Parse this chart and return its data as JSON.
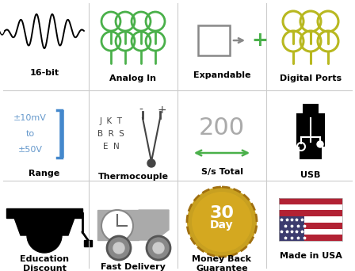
{
  "background_color": "#ffffff",
  "labels": {
    "row0": [
      "16-bit",
      "Analog In",
      "Expandable",
      "Digital Ports"
    ],
    "row1": [
      "Range",
      "Thermocouple",
      "S/s Total",
      "USB"
    ],
    "row2": [
      "Education\nDiscount",
      "Fast Delivery",
      "Money Back\nGuarantee",
      "Made in USA"
    ]
  },
  "analog_in_color": "#4ab04a",
  "digital_ports_color": "#b8b820",
  "expandable_plus_color": "#4ab04a",
  "expandable_arrow_color": "#888888",
  "range_text_color": "#6699cc",
  "range_bar_color": "#4488cc",
  "thermocouple_color": "#444444",
  "ss_total_color": "#4ab04a",
  "money_back_color": "#c8a020",
  "separator_color": "#cccccc",
  "label_fontsize": 8,
  "label_fontweight": "bold",
  "fig_width": 4.48,
  "fig_height": 3.42,
  "fig_dpi": 100
}
